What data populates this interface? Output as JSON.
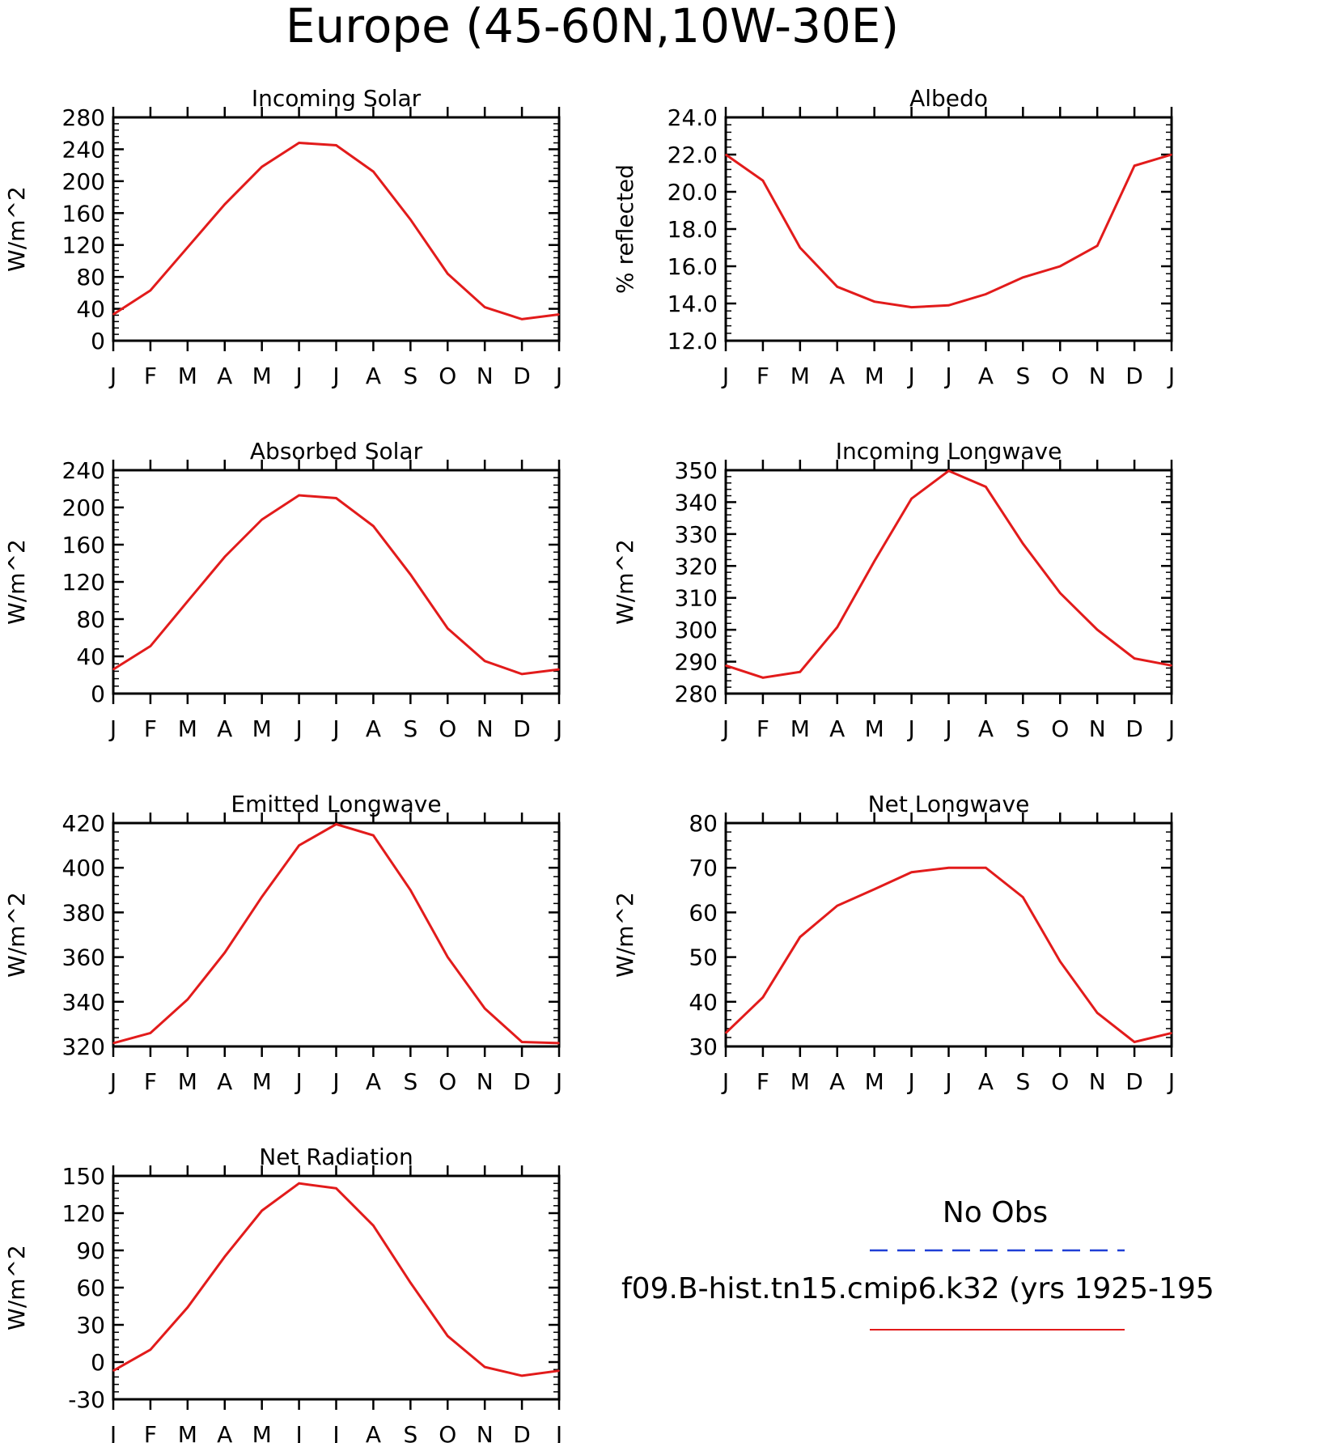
{
  "figure_title": "Europe (45-60N,10W-30E)",
  "legend": {
    "obs_label": "No Obs",
    "obs_color": "#1f3fd6",
    "model_label": "f09.B-hist.tn15.cmip6.k32 (yrs 1925-195",
    "model_color": "#e21b1b"
  },
  "chart_data": [
    {
      "type": "line",
      "title": "Incoming Solar",
      "ylabel": "W/m^2",
      "categories": [
        "J",
        "F",
        "M",
        "A",
        "M",
        "J",
        "J",
        "A",
        "S",
        "O",
        "N",
        "D",
        "J"
      ],
      "ylim": [
        0,
        280
      ],
      "yticks": [
        0,
        40,
        80,
        120,
        160,
        200,
        240,
        280
      ],
      "yticklabels": [
        "0",
        "40",
        "80",
        "120",
        "160",
        "200",
        "240",
        "280"
      ],
      "grid": false,
      "series": [
        {
          "values": [
            33,
            63,
            117,
            171,
            218,
            248,
            245,
            212,
            152,
            84,
            42,
            27,
            33
          ]
        }
      ]
    },
    {
      "type": "line",
      "title": "Albedo",
      "ylabel": "% reflected",
      "categories": [
        "J",
        "F",
        "M",
        "A",
        "M",
        "J",
        "J",
        "A",
        "S",
        "O",
        "N",
        "D",
        "J"
      ],
      "ylim": [
        12,
        24
      ],
      "yticks": [
        12,
        14,
        16,
        18,
        20,
        22,
        24
      ],
      "yticklabels": [
        "12.0",
        "14.0",
        "16.0",
        "18.0",
        "20.0",
        "22.0",
        "24.0"
      ],
      "grid": false,
      "series": [
        {
          "values": [
            22.0,
            20.6,
            17.0,
            14.9,
            14.1,
            13.8,
            13.9,
            14.5,
            15.4,
            16.0,
            17.1,
            21.4,
            22.0
          ]
        }
      ]
    },
    {
      "type": "line",
      "title": "Absorbed Solar",
      "ylabel": "W/m^2",
      "categories": [
        "J",
        "F",
        "M",
        "A",
        "M",
        "J",
        "J",
        "A",
        "S",
        "O",
        "N",
        "D",
        "J"
      ],
      "ylim": [
        0,
        240
      ],
      "yticks": [
        0,
        40,
        80,
        120,
        160,
        200,
        240
      ],
      "yticklabels": [
        "0",
        "40",
        "80",
        "120",
        "160",
        "200",
        "240"
      ],
      "grid": false,
      "series": [
        {
          "values": [
            26,
            51,
            99,
            147,
            187,
            213,
            210,
            180,
            128,
            70,
            35,
            21,
            26
          ]
        }
      ]
    },
    {
      "type": "line",
      "title": "Incoming Longwave",
      "ylabel": "W/m^2",
      "categories": [
        "J",
        "F",
        "M",
        "A",
        "M",
        "J",
        "J",
        "A",
        "S",
        "O",
        "N",
        "D",
        "J"
      ],
      "ylim": [
        280,
        350
      ],
      "yticks": [
        280,
        290,
        300,
        310,
        320,
        330,
        340,
        350
      ],
      "yticklabels": [
        "280",
        "290",
        "300",
        "310",
        "320",
        "330",
        "340",
        "350"
      ],
      "grid": false,
      "series": [
        {
          "values": [
            288.8,
            285.0,
            286.8,
            300.8,
            321.5,
            341.1,
            349.8,
            344.8,
            327.0,
            311.5,
            300.0,
            291.0,
            288.8
          ]
        }
      ]
    },
    {
      "type": "line",
      "title": "Emitted Longwave",
      "ylabel": "W/m^2",
      "categories": [
        "J",
        "F",
        "M",
        "A",
        "M",
        "J",
        "J",
        "A",
        "S",
        "O",
        "N",
        "D",
        "J"
      ],
      "ylim": [
        320,
        420
      ],
      "yticks": [
        320,
        340,
        360,
        380,
        400,
        420
      ],
      "yticklabels": [
        "320",
        "340",
        "360",
        "380",
        "400",
        "420"
      ],
      "grid": false,
      "series": [
        {
          "values": [
            321.5,
            326,
            341,
            362,
            387,
            410,
            419.5,
            414.5,
            390,
            360,
            337,
            322,
            321.5
          ]
        }
      ]
    },
    {
      "type": "line",
      "title": "Net Longwave",
      "ylabel": "W/m^2",
      "categories": [
        "J",
        "F",
        "M",
        "A",
        "M",
        "J",
        "J",
        "A",
        "S",
        "O",
        "N",
        "D",
        "J"
      ],
      "ylim": [
        30,
        80
      ],
      "yticks": [
        30,
        40,
        50,
        60,
        70,
        80
      ],
      "yticklabels": [
        "30",
        "40",
        "50",
        "60",
        "70",
        "80"
      ],
      "grid": false,
      "series": [
        {
          "values": [
            33,
            41,
            54.5,
            61.5,
            65.2,
            69,
            70,
            70,
            63.4,
            49,
            37.5,
            31,
            33
          ]
        }
      ]
    },
    {
      "type": "line",
      "title": "Net Radiation",
      "ylabel": "W/m^2",
      "categories": [
        "J",
        "F",
        "M",
        "A",
        "M",
        "J",
        "J",
        "A",
        "S",
        "O",
        "N",
        "D",
        "J"
      ],
      "ylim": [
        -30,
        150
      ],
      "yticks": [
        -30,
        0,
        30,
        60,
        90,
        120,
        150
      ],
      "yticklabels": [
        "-30",
        "0",
        "30",
        "60",
        "90",
        "120",
        "150"
      ],
      "grid": false,
      "series": [
        {
          "values": [
            -7,
            10,
            44,
            85,
            122,
            144,
            140,
            110,
            64,
            21,
            -4,
            -11,
            -7
          ]
        }
      ]
    }
  ]
}
